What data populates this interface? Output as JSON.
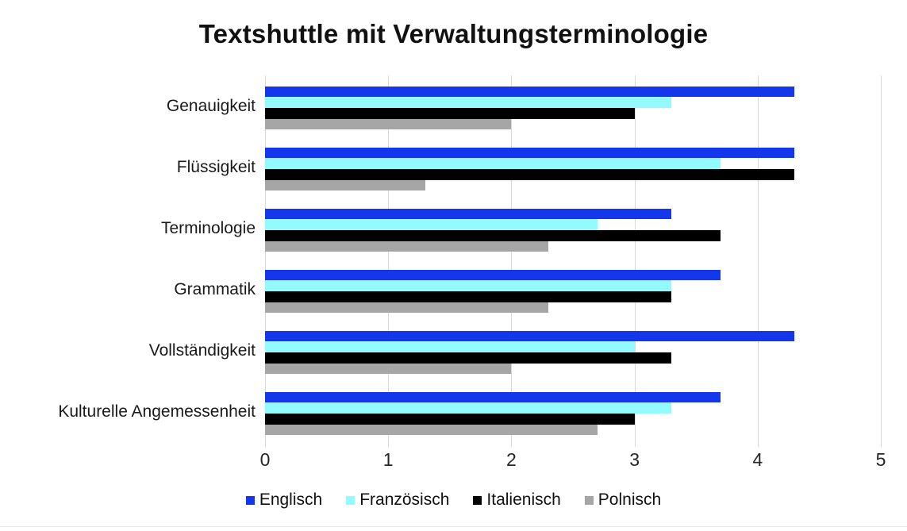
{
  "page": {
    "background": "#ffffff",
    "bottom_rule_color": "#e7e7e7"
  },
  "chart_data": {
    "type": "bar",
    "orientation": "horizontal",
    "title": "Textshuttle mit Verwaltungsterminologie",
    "categories": [
      "Genauigkeit",
      "Flüssigkeit",
      "Terminologie",
      "Grammatik",
      "Vollständigkeit",
      "Kulturelle Angemessenheit"
    ],
    "series": [
      {
        "name": "Englisch",
        "color": "#1537ec",
        "values": [
          4.3,
          4.3,
          3.3,
          3.7,
          4.3,
          3.7
        ]
      },
      {
        "name": "Französisch",
        "color": "#93fbff",
        "values": [
          3.3,
          3.7,
          2.7,
          3.3,
          3.0,
          3.3
        ]
      },
      {
        "name": "Italienisch",
        "color": "#000000",
        "values": [
          3.0,
          4.3,
          3.7,
          3.3,
          3.3,
          3.0
        ]
      },
      {
        "name": "Polnisch",
        "color": "#a6a6a6",
        "values": [
          2.0,
          1.3,
          2.3,
          2.3,
          2.0,
          2.7
        ]
      }
    ],
    "x_axis": {
      "min": 0,
      "max": 5,
      "ticks": [
        0,
        1,
        2,
        3,
        4,
        5
      ]
    },
    "xlabel": "",
    "ylabel": "",
    "grid": true,
    "gridline_color": "#d9d9d9",
    "legend_position": "bottom",
    "text_color": "#111111"
  }
}
